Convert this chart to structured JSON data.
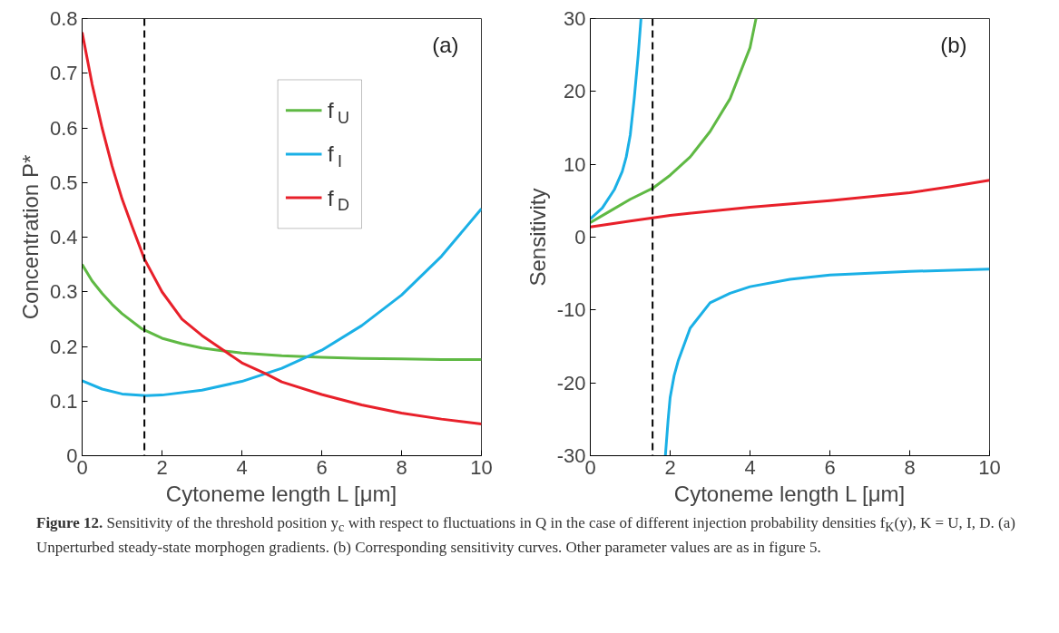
{
  "chart_data": [
    {
      "type": "line",
      "xlabel": "Cytoneme length L [μm]",
      "ylabel": "Concentration P*",
      "xlim": [
        0,
        10
      ],
      "ylim": [
        0,
        0.8
      ],
      "xticks": [
        0,
        2,
        4,
        6,
        8,
        10
      ],
      "yticks": [
        0,
        0.1,
        0.2,
        0.3,
        0.4,
        0.5,
        0.6,
        0.7,
        0.8
      ],
      "grid": false,
      "legend": "top right",
      "line_style": "solid",
      "series": [
        {
          "name": "f$_{U}$",
          "color": "#5fb944",
          "x": [
            0,
            0.25,
            0.5,
            0.75,
            1,
            1.5,
            2,
            2.5,
            3,
            3.5,
            4,
            5,
            6,
            7,
            8,
            9,
            10
          ],
          "values": [
            0.35,
            0.32,
            0.297,
            0.277,
            0.26,
            0.232,
            0.215,
            0.205,
            0.197,
            0.192,
            0.188,
            0.183,
            0.18,
            0.178,
            0.177,
            0.176,
            0.176
          ]
        },
        {
          "name": "f$_{I}$",
          "color": "#1ab0e6",
          "x": [
            0,
            0.5,
            1,
            1.6,
            2,
            3,
            4,
            5,
            6,
            7,
            8,
            9,
            10
          ],
          "values": [
            0.137,
            0.122,
            0.113,
            0.11,
            0.111,
            0.12,
            0.136,
            0.16,
            0.193,
            0.238,
            0.294,
            0.365,
            0.452
          ]
        },
        {
          "name": "f$_{D}$",
          "color": "#e8202a",
          "x": [
            0,
            0.25,
            0.5,
            0.75,
            1,
            1.25,
            1.56,
            2,
            2.5,
            3,
            3.6,
            4,
            4.6,
            5,
            6,
            7,
            8,
            9,
            10
          ],
          "values": [
            0.775,
            0.68,
            0.6,
            0.53,
            0.47,
            0.42,
            0.36,
            0.3,
            0.25,
            0.22,
            0.19,
            0.17,
            0.15,
            0.135,
            0.112,
            0.093,
            0.078,
            0.067,
            0.058
          ]
        }
      ],
      "ref_lines": [
        {
          "axis": "x",
          "value": 1.56,
          "label": null,
          "color": "#000000",
          "line_style": "dashed"
        }
      ],
      "annotations": [
        "(a)"
      ]
    },
    {
      "type": "line",
      "xlabel": "Cytoneme length L [μm]",
      "ylabel": "Sensitivity",
      "xlim": [
        0,
        10
      ],
      "ylim": [
        -30,
        30
      ],
      "xticks": [
        0,
        2,
        4,
        6,
        8,
        10
      ],
      "yticks": [
        -30,
        -20,
        -10,
        0,
        10,
        20,
        30
      ],
      "grid": false,
      "legend": false,
      "line_style": "solid",
      "series": [
        {
          "color": "#1ab0e6",
          "x": [
            0,
            0.3,
            0.6,
            0.8,
            0.9,
            1.0,
            1.1,
            1.2,
            1.27,
            1.6,
            1.88,
            1.95,
            2.0,
            2.1,
            2.2,
            2.5,
            3,
            3.5,
            4,
            5,
            6,
            8,
            10
          ],
          "values": [
            2.5,
            4,
            6.5,
            9,
            11,
            14,
            19,
            25,
            30,
            null,
            -30,
            -25,
            -22,
            -19,
            -17,
            -12.5,
            -9,
            -7.7,
            -6.8,
            -5.8,
            -5.2,
            -4.7,
            -4.4
          ]
        },
        {
          "color": "#5fb944",
          "x": [
            0,
            0.5,
            1,
            1.56,
            2,
            2.5,
            3,
            3.5,
            4,
            4.15
          ],
          "values": [
            2,
            3.6,
            5.2,
            6.7,
            8.5,
            11,
            14.5,
            19,
            26,
            30
          ]
        },
        {
          "color": "#e8202a",
          "x": [
            0,
            1,
            2,
            4,
            6,
            8,
            9,
            10
          ],
          "values": [
            1.4,
            2.2,
            3.0,
            4.1,
            5.0,
            6.1,
            6.9,
            7.8
          ]
        }
      ],
      "ref_lines": [
        {
          "axis": "x",
          "value": 1.56,
          "label": null,
          "color": "#000000",
          "line_style": "dashed"
        }
      ],
      "annotations": [
        "(b)",
        "Figure 12.  Sensitivity of the threshold position y$_{c}$ with respect to fluctuations in Q in the case of different injection probability densities f$_{K}$(y), K = U, I, D. (a) Unperturbed steady-state morphogen gradients. (b) Corresponding sensitivity curves. Other parameter values are as in figure 5."
      ]
    }
  ]
}
